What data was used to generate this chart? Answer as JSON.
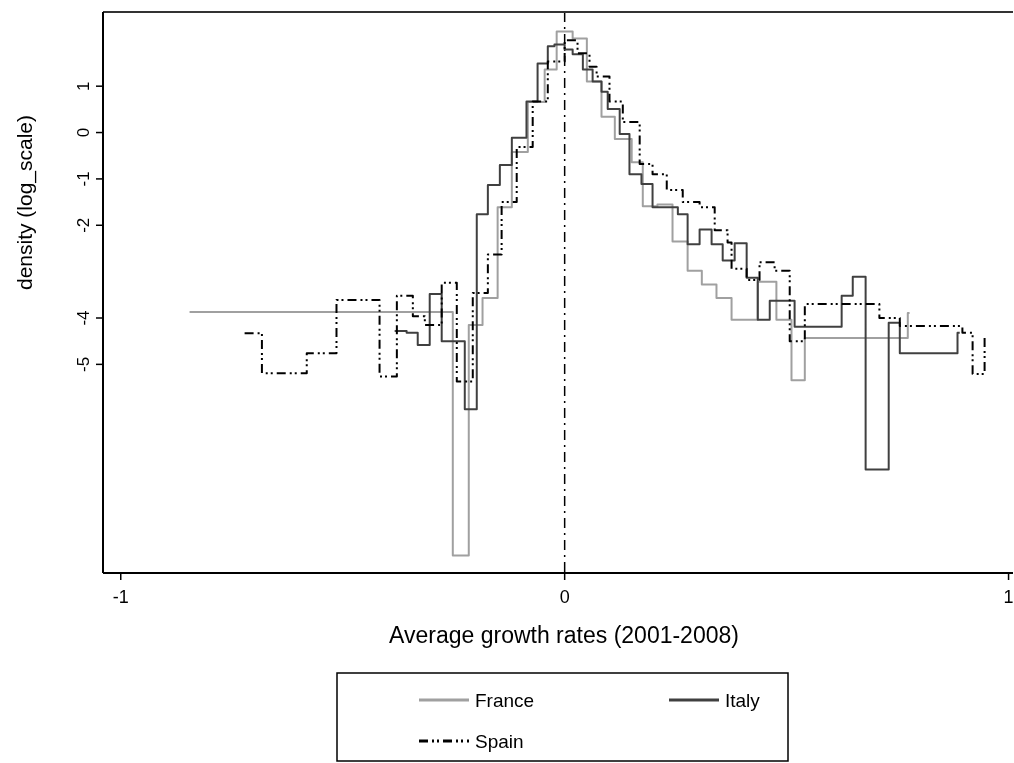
{
  "chart_data": {
    "type": "step",
    "xlabel": "Average growth rates (2001-2008)",
    "ylabel": "density (log_scale)",
    "xlim": [
      -1.04,
      1.01
    ],
    "xticks": [
      -1,
      0,
      1
    ],
    "ylim": [
      -9.5,
      2.6
    ],
    "yticks": [
      1,
      0,
      -1,
      -2,
      -4,
      -5
    ],
    "grid": false,
    "legend": "bottom",
    "ref_lines": [
      {
        "axis": "x",
        "value": 0,
        "color": "#000000",
        "line_style": "dashed"
      }
    ],
    "series": [
      {
        "name": "France",
        "color": "#a0a0a0",
        "line_style": "solid",
        "x": [
          -0.845,
          -0.252,
          -0.216,
          -0.185,
          -0.151,
          -0.119,
          -0.083,
          -0.045,
          -0.018,
          0.018,
          0.05,
          0.083,
          0.113,
          0.151,
          0.176,
          0.209,
          0.243,
          0.277,
          0.309,
          0.342,
          0.376,
          0.435,
          0.477,
          0.511,
          0.541,
          0.773,
          0.777
        ],
        "values": [
          -3.87,
          -9.12,
          -4.15,
          -3.57,
          -1.61,
          -0.42,
          0.66,
          1.36,
          2.18,
          2.03,
          1.1,
          0.34,
          -0.14,
          -0.64,
          -1.59,
          -1.55,
          -2.35,
          -2.98,
          -3.28,
          -3.57,
          -4.04,
          -3.22,
          -4.04,
          -5.34,
          -4.43,
          -3.89,
          -3.89
        ]
      },
      {
        "name": "Italy",
        "color": "#404040",
        "line_style": "solid",
        "x": [
          -0.383,
          -0.356,
          -0.331,
          -0.304,
          -0.277,
          -0.225,
          -0.198,
          -0.173,
          -0.146,
          -0.119,
          -0.086,
          -0.061,
          -0.038,
          -0.023,
          0,
          0.018,
          0.041,
          0.063,
          0.083,
          0.097,
          0.124,
          0.146,
          0.173,
          0.198,
          0.255,
          0.277,
          0.304,
          0.331,
          0.356,
          0.383,
          0.41,
          0.435,
          0.462,
          0.518,
          0.624,
          0.649,
          0.678,
          0.73,
          0.755,
          0.885,
          0.89
        ],
        "values": [
          -4.28,
          -4.32,
          -4.58,
          -3.48,
          -4.5,
          -5.97,
          -1.76,
          -1.13,
          -0.7,
          -0.11,
          0.67,
          1.49,
          1.86,
          1.9,
          1.79,
          1.69,
          1.36,
          1.1,
          0.88,
          0.51,
          -0.03,
          -0.9,
          -1.11,
          -1.61,
          -1.76,
          -2.41,
          -2.09,
          -2.41,
          -2.76,
          -2.39,
          -3.13,
          -4.04,
          -3.63,
          -4.19,
          -3.52,
          -3.11,
          -7.27,
          -4.1,
          -4.76,
          -4.32,
          -4.32
        ]
      },
      {
        "name": "Spain",
        "color": "#000000",
        "line_style": "dashed",
        "x": [
          -0.721,
          -0.682,
          -0.581,
          -0.514,
          -0.417,
          -0.378,
          -0.342,
          -0.315,
          -0.277,
          -0.243,
          -0.207,
          -0.173,
          -0.142,
          -0.108,
          -0.072,
          -0.038,
          0,
          0.029,
          0.056,
          0.072,
          0.101,
          0.131,
          0.169,
          0.198,
          0.23,
          0.266,
          0.304,
          0.338,
          0.367,
          0.376,
          0.41,
          0.439,
          0.473,
          0.507,
          0.541,
          0.709,
          0.755,
          0.896,
          0.919,
          0.946,
          0.953
        ],
        "values": [
          -4.33,
          -5.19,
          -4.76,
          -3.61,
          -5.26,
          -3.52,
          -3.96,
          -4.15,
          -3.24,
          -5.37,
          -3.46,
          -2.63,
          -1.5,
          -0.31,
          0.67,
          1.53,
          1.99,
          1.71,
          1.42,
          1.21,
          0.67,
          0.23,
          -0.68,
          -0.9,
          -1.24,
          -1.5,
          -1.61,
          -2.11,
          -2.37,
          -2.94,
          -3.18,
          -2.8,
          -2.98,
          -4.5,
          -3.7,
          -4.0,
          -4.17,
          -4.32,
          -5.21,
          -4.43,
          -4.43
        ]
      }
    ]
  }
}
